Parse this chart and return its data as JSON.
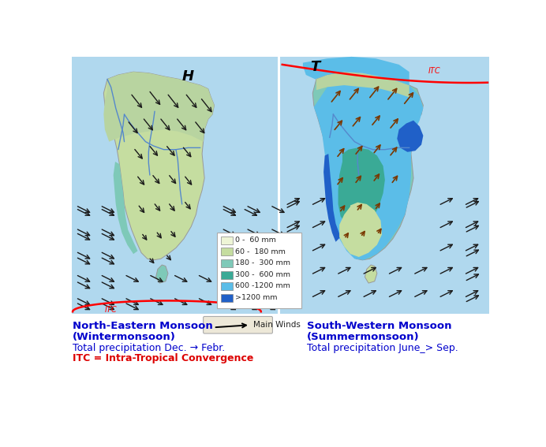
{
  "left_label_line1": "North-Eastern Monsoon",
  "left_label_line2": "(Wintermonsoon)",
  "left_label_line3": "Total precipitation Dec. → Febr.",
  "right_label_line1": "South-Western Monsoon",
  "right_label_line2": "(Summermonsoon)",
  "right_label_line3": "Total precipitation June_> Sep.",
  "itc_label": "ITC = Intra-Tropical Convergence",
  "legend_items": [
    {
      "label": "0 -  60 mm",
      "color": "#eef5d6"
    },
    {
      "label": "60 -  180 mm",
      "color": "#c5dda0"
    },
    {
      "label": "180 -  300 mm",
      "color": "#7ec9b8"
    },
    {
      "label": "300 -  600 mm",
      "color": "#3aaa96"
    },
    {
      "label": "600 -1200 mm",
      "color": "#5bbde8"
    },
    {
      "label": ">1200 mm",
      "color": "#2060c8"
    }
  ],
  "ocean_color": "#b0d8ee",
  "bg_color": "#ffffff",
  "text_color_blue": "#0000cc",
  "text_color_red": "#dd0000",
  "left_H_label": "H",
  "right_T_label": "T",
  "main_winds_label": "Main Winds"
}
